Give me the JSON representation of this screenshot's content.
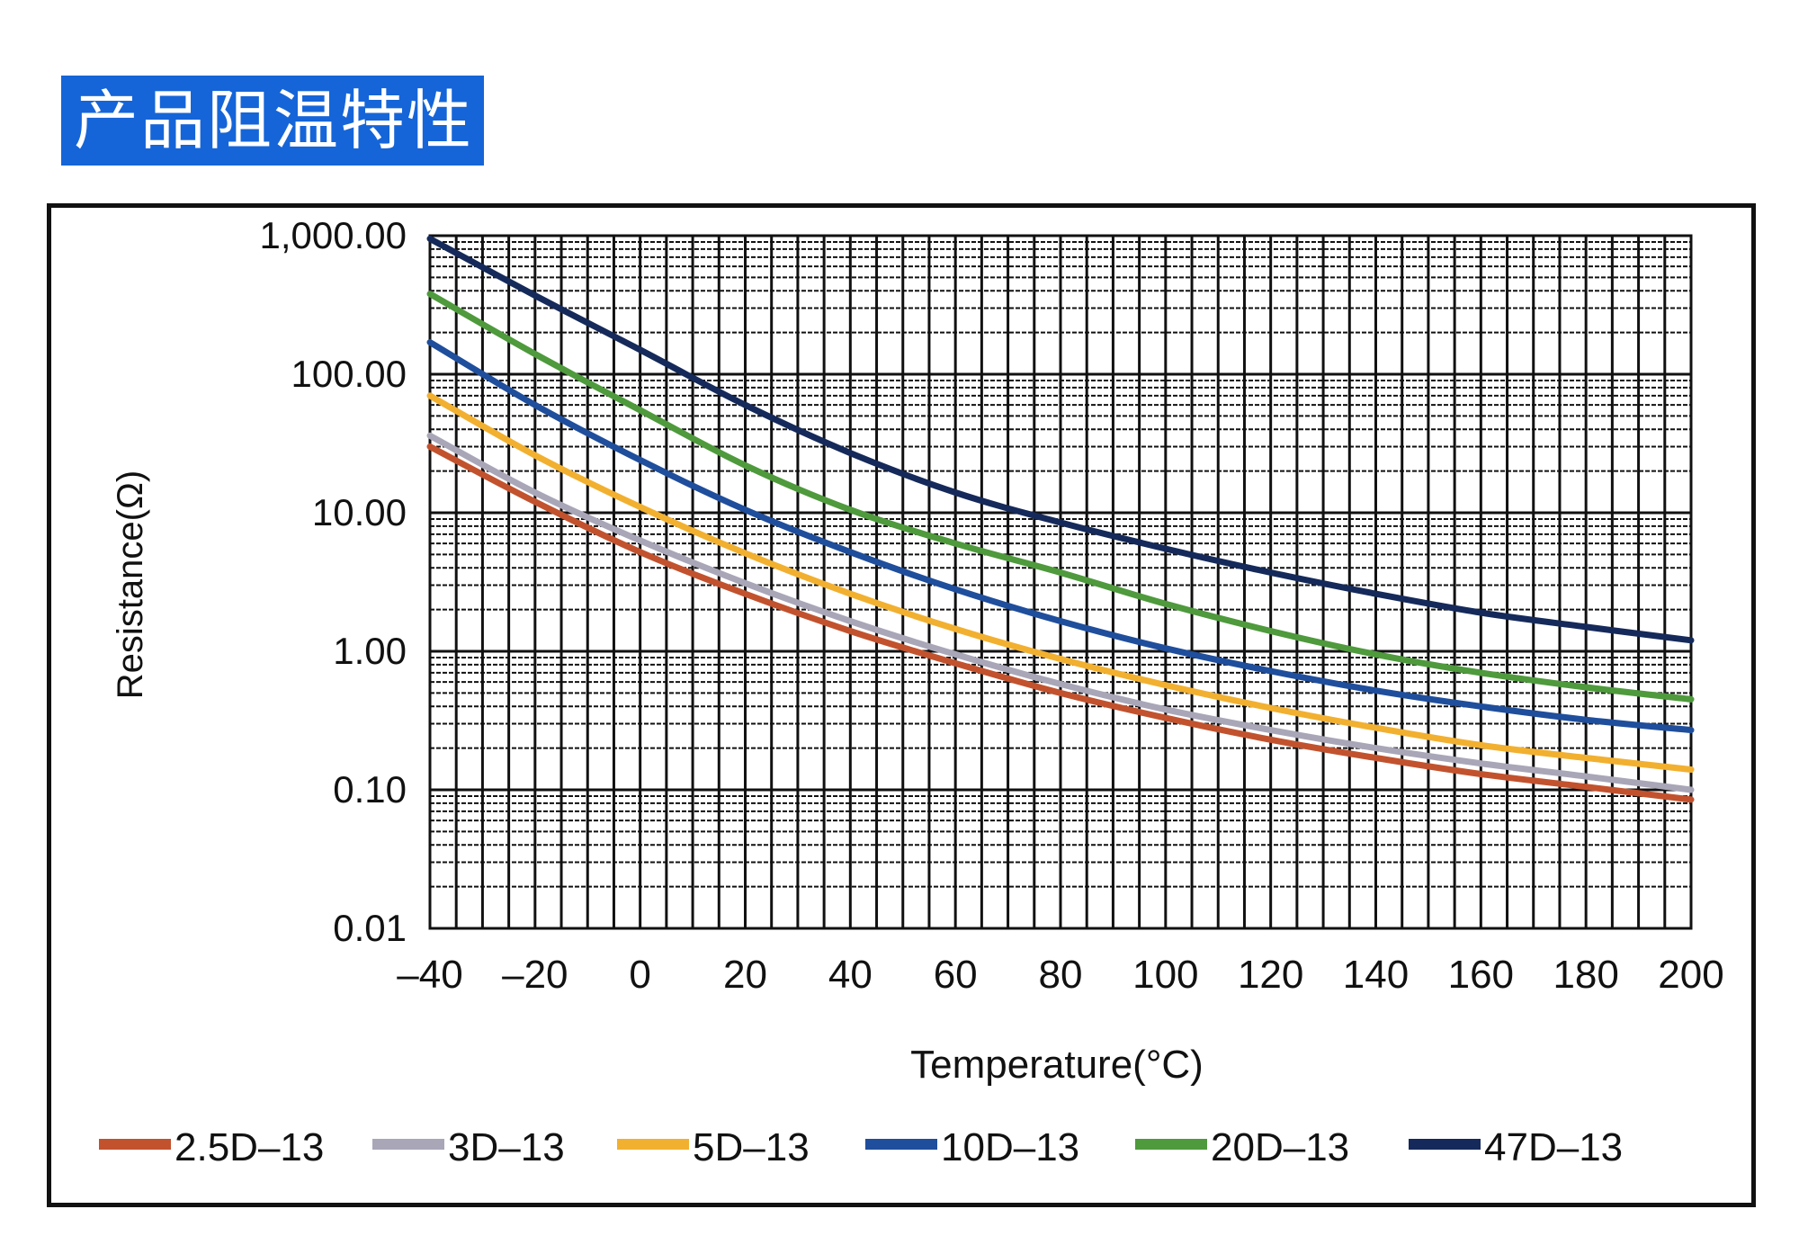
{
  "header": {
    "title": "产品阻温特性"
  },
  "chart_data": {
    "type": "line",
    "title": "",
    "xlabel": "Temperature(°C)",
    "ylabel": "Resistance(Ω)",
    "xlim": [
      -40,
      200
    ],
    "ylim": [
      0.01,
      1000
    ],
    "yscale": "log",
    "grid": true,
    "legend_position": "bottom",
    "x_ticks": [
      -40,
      -20,
      0,
      20,
      40,
      60,
      80,
      100,
      120,
      140,
      160,
      180,
      200
    ],
    "x_tick_labels": [
      "–40",
      "–20",
      "0",
      "20",
      "40",
      "60",
      "80",
      "100",
      "120",
      "140",
      "160",
      "180",
      "200"
    ],
    "y_ticks": [
      0.01,
      0.1,
      1,
      10,
      100,
      1000
    ],
    "y_tick_labels": [
      "0.01",
      "0.10",
      "1.00",
      "10.00",
      "100.00",
      "1,000.00"
    ],
    "x": [
      -40,
      -20,
      0,
      20,
      40,
      60,
      80,
      100,
      120,
      140,
      160,
      180,
      200
    ],
    "series": [
      {
        "name": "2.5D–13",
        "color": "#c2522e",
        "values": [
          30,
          12,
          5.2,
          2.6,
          1.4,
          0.82,
          0.5,
          0.33,
          0.23,
          0.17,
          0.13,
          0.105,
          0.085
        ]
      },
      {
        "name": "3D–13",
        "color": "#a9a6b8",
        "values": [
          36,
          14,
          6.3,
          3.1,
          1.65,
          0.95,
          0.58,
          0.38,
          0.27,
          0.2,
          0.155,
          0.125,
          0.1
        ]
      },
      {
        "name": "5D–13",
        "color": "#f2b030",
        "values": [
          70,
          26,
          11,
          5.1,
          2.6,
          1.45,
          0.88,
          0.57,
          0.39,
          0.28,
          0.21,
          0.17,
          0.14
        ]
      },
      {
        "name": "10D–13",
        "color": "#1f4e9c",
        "values": [
          170,
          60,
          24,
          10.5,
          5.2,
          2.8,
          1.65,
          1.05,
          0.72,
          0.52,
          0.4,
          0.32,
          0.27
        ]
      },
      {
        "name": "20D–13",
        "color": "#4e9a3c",
        "values": [
          380,
          140,
          55,
          22,
          10.5,
          6,
          3.7,
          2.2,
          1.4,
          0.95,
          0.7,
          0.55,
          0.45
        ]
      },
      {
        "name": "47D–13",
        "color": "#152a5a",
        "values": [
          950,
          370,
          150,
          60,
          27,
          14,
          8.5,
          5.5,
          3.7,
          2.6,
          1.9,
          1.5,
          1.2
        ]
      }
    ]
  }
}
